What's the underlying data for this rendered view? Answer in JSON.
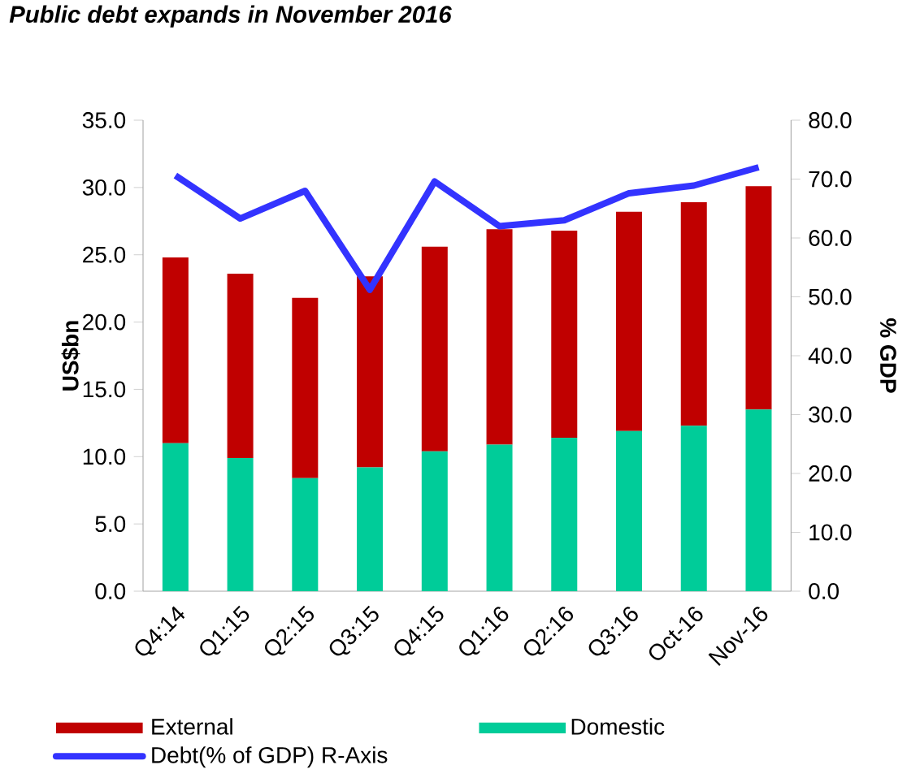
{
  "chart_data": {
    "type": "bar",
    "title": "Public debt expands in November 2016",
    "ylabel": "US$bn",
    "y2label": "% GDP",
    "categories": [
      "Q4:14",
      "Q1:15",
      "Q2:15",
      "Q3:15",
      "Q4:15",
      "Q1:16",
      "Q2:16",
      "Q3:16",
      "Oct-16",
      "Nov-16"
    ],
    "stacked": true,
    "legend": "bottom",
    "series": [
      {
        "name": "Domestic",
        "color": "#00cc99",
        "values": [
          11.0,
          9.9,
          8.4,
          9.2,
          10.4,
          10.9,
          11.4,
          11.9,
          12.3,
          13.5
        ]
      },
      {
        "name": "External",
        "color": "#c00000",
        "values": [
          13.8,
          13.7,
          13.4,
          14.2,
          15.2,
          16.0,
          15.4,
          16.3,
          16.6,
          16.6
        ]
      },
      {
        "name": "Debt(% of GDP) R-Axis",
        "type": "line",
        "axis": "y2",
        "color": "#3333ff",
        "values": [
          70.6,
          63.3,
          68.0,
          51.2,
          69.6,
          62.0,
          63.0,
          67.6,
          68.9,
          72.0
        ]
      }
    ],
    "ylim": [
      0,
      35
    ],
    "yticks": [
      {
        "value": 0,
        "label": "0.0"
      },
      {
        "value": 5,
        "label": "5.0"
      },
      {
        "value": 10,
        "label": "10.0"
      },
      {
        "value": 15,
        "label": "15.0"
      },
      {
        "value": 20,
        "label": "20.0"
      },
      {
        "value": 25,
        "label": "25.0"
      },
      {
        "value": 30,
        "label": "30.0"
      },
      {
        "value": 35,
        "label": "35.0"
      }
    ],
    "y2lim": [
      0,
      80
    ],
    "y2ticks": [
      {
        "value": 0,
        "label": "0.0"
      },
      {
        "value": 10,
        "label": "10.0"
      },
      {
        "value": 20,
        "label": "20.0"
      },
      {
        "value": 30,
        "label": "30.0"
      },
      {
        "value": 40,
        "label": "40.0"
      },
      {
        "value": 50,
        "label": "50.0"
      },
      {
        "value": 60,
        "label": "60.0"
      },
      {
        "value": 70,
        "label": "70.0"
      },
      {
        "value": 80,
        "label": "80.0"
      }
    ]
  }
}
